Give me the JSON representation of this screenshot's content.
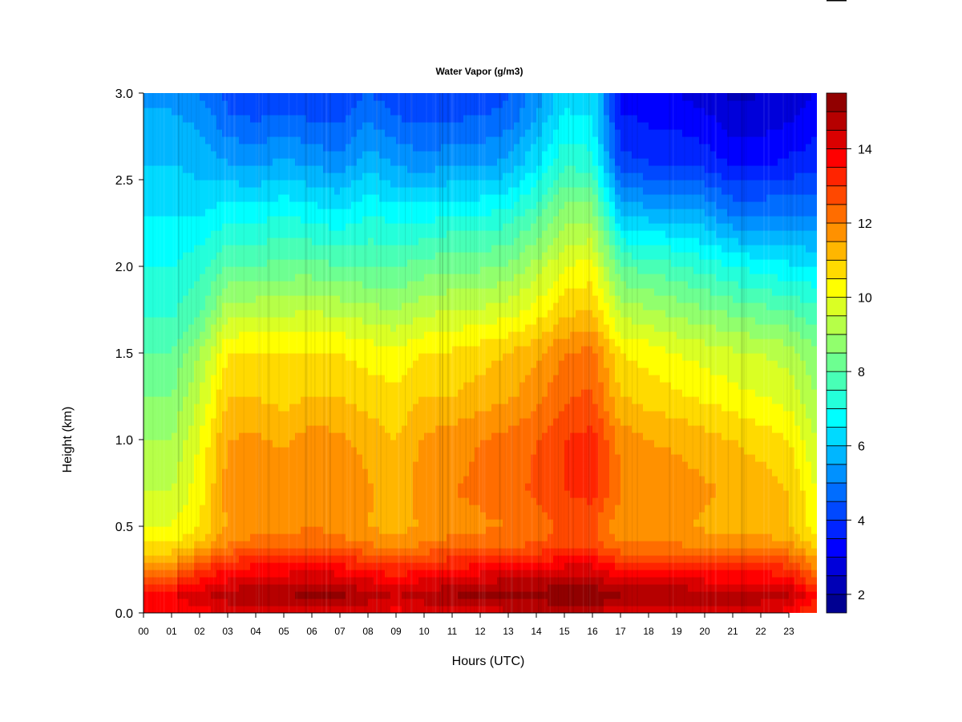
{
  "chart_data": {
    "type": "heatmap",
    "title": "Water Vapor (g/m3)",
    "xlabel": "Hours (UTC)",
    "ylabel": "Height (km)",
    "xlim": [
      0,
      24
    ],
    "ylim": [
      0,
      3.0
    ],
    "x_ticks": [
      "00",
      "01",
      "02",
      "03",
      "04",
      "05",
      "06",
      "07",
      "08",
      "09",
      "10",
      "11",
      "12",
      "13",
      "14",
      "15",
      "16",
      "17",
      "18",
      "19",
      "20",
      "21",
      "22",
      "23"
    ],
    "y_ticks": [
      "0.0",
      "0.5",
      "1.0",
      "1.5",
      "2.0",
      "2.5",
      "3.0"
    ],
    "colorbar": {
      "range": [
        1.5,
        15.5
      ],
      "levels": 28,
      "ticks": [
        "2",
        "4",
        "6",
        "8",
        "10",
        "12",
        "14"
      ],
      "colors": [
        "#00007f",
        "#0000bf",
        "#0000ff",
        "#003fff",
        "#007fff",
        "#00bfff",
        "#00ffff",
        "#3fffbf",
        "#7fff7f",
        "#bfff3f",
        "#ffff00",
        "#ffbf00",
        "#ff7f00",
        "#ff3f00",
        "#ff0000",
        "#bf0000",
        "#7f0000"
      ]
    },
    "height_km": [
      0.0,
      0.1,
      0.25,
      0.4,
      0.5,
      0.7,
      1.0,
      1.25,
      1.5,
      1.7,
      2.0,
      2.3,
      2.6,
      2.9,
      3.0
    ],
    "hours": [
      0,
      1,
      2,
      3,
      4,
      5,
      6,
      7,
      8,
      9,
      10,
      11,
      12,
      13,
      14,
      15,
      16,
      17,
      18,
      19,
      20,
      21,
      22,
      23,
      24
    ],
    "values": [
      [
        13.5,
        14.0,
        12.0,
        10.5,
        10.0,
        9.5,
        9.0,
        8.5,
        8.0,
        7.5,
        7.0,
        6.5,
        6.0,
        5.5,
        5.3
      ],
      [
        13.5,
        14.0,
        12.0,
        10.5,
        10.0,
        9.5,
        9.0,
        8.5,
        8.0,
        7.5,
        7.0,
        6.5,
        6.0,
        5.5,
        5.3
      ],
      [
        13.8,
        14.3,
        13.0,
        11.0,
        10.5,
        10.3,
        10.0,
        9.5,
        9.0,
        8.0,
        7.3,
        6.5,
        5.8,
        5.3,
        5.0
      ],
      [
        14.0,
        14.8,
        13.5,
        12.0,
        11.5,
        11.8,
        11.5,
        11.0,
        10.5,
        9.5,
        8.0,
        6.8,
        5.5,
        4.5,
        4.3
      ],
      [
        14.2,
        15.0,
        13.8,
        12.2,
        11.8,
        12.0,
        11.6,
        11.0,
        10.5,
        9.6,
        8.0,
        6.8,
        5.4,
        4.3,
        4.0
      ],
      [
        14.2,
        15.0,
        13.8,
        12.2,
        11.8,
        11.8,
        11.4,
        10.8,
        10.5,
        9.6,
        8.2,
        7.0,
        5.6,
        4.5,
        4.2
      ],
      [
        14.3,
        15.1,
        14.0,
        12.3,
        12.0,
        12.0,
        11.8,
        11.0,
        10.6,
        9.7,
        8.2,
        6.8,
        5.4,
        4.3,
        4.0
      ],
      [
        14.2,
        15.1,
        13.8,
        12.2,
        11.8,
        12.0,
        11.6,
        11.0,
        10.5,
        9.6,
        8.0,
        6.6,
        5.2,
        4.2,
        4.0
      ],
      [
        14.0,
        14.8,
        13.5,
        12.0,
        11.5,
        11.6,
        11.3,
        10.8,
        10.3,
        9.4,
        8.0,
        7.0,
        5.8,
        4.8,
        4.5
      ],
      [
        13.8,
        14.5,
        13.2,
        11.8,
        11.2,
        11.2,
        11.0,
        10.6,
        10.2,
        9.2,
        8.0,
        6.8,
        5.4,
        4.4,
        4.2
      ],
      [
        14.0,
        14.8,
        13.5,
        12.0,
        11.6,
        11.8,
        11.6,
        11.0,
        10.5,
        9.6,
        8.2,
        6.8,
        5.2,
        4.2,
        4.0
      ],
      [
        14.1,
        15.0,
        13.6,
        12.2,
        11.8,
        12.0,
        11.8,
        11.0,
        10.6,
        9.7,
        8.4,
        7.0,
        5.4,
        4.3,
        4.1
      ],
      [
        14.2,
        15.2,
        13.8,
        12.3,
        11.9,
        12.1,
        12.0,
        11.2,
        10.8,
        9.8,
        8.4,
        7.0,
        5.4,
        4.4,
        4.2
      ],
      [
        14.3,
        15.4,
        14.0,
        12.4,
        12.0,
        12.3,
        12.2,
        11.4,
        11.0,
        10.0,
        8.6,
        7.2,
        5.6,
        4.6,
        4.4
      ],
      [
        14.3,
        15.3,
        14.0,
        12.5,
        12.2,
        12.6,
        12.5,
        11.8,
        11.4,
        10.4,
        9.2,
        7.8,
        6.4,
        5.4,
        5.2
      ],
      [
        14.5,
        15.5,
        14.2,
        12.8,
        12.6,
        13.0,
        13.0,
        12.4,
        12.0,
        11.0,
        10.0,
        8.8,
        7.4,
        6.5,
        6.4
      ],
      [
        14.6,
        15.5,
        14.2,
        12.8,
        12.6,
        13.2,
        13.2,
        12.6,
        12.2,
        11.2,
        10.2,
        8.8,
        7.2,
        6.4,
        6.5
      ],
      [
        14.0,
        15.0,
        13.5,
        12.0,
        11.6,
        12.0,
        11.8,
        11.0,
        10.5,
        9.5,
        8.0,
        6.0,
        4.2,
        3.5,
        3.3
      ],
      [
        14.0,
        15.0,
        13.6,
        12.0,
        11.6,
        11.8,
        11.5,
        10.8,
        10.3,
        9.3,
        7.8,
        5.8,
        4.0,
        3.3,
        3.1
      ],
      [
        14.1,
        15.0,
        13.6,
        12.0,
        11.6,
        11.8,
        11.4,
        10.6,
        10.0,
        9.0,
        7.6,
        5.8,
        4.0,
        3.2,
        3.0
      ],
      [
        14.0,
        14.8,
        13.4,
        11.8,
        11.4,
        11.6,
        11.2,
        10.4,
        9.8,
        8.8,
        7.3,
        5.6,
        3.8,
        3.0,
        2.8
      ],
      [
        14.0,
        14.8,
        13.4,
        11.8,
        11.2,
        11.4,
        11.0,
        10.2,
        9.6,
        8.6,
        7.0,
        5.0,
        3.4,
        2.6,
        2.4
      ],
      [
        14.0,
        14.8,
        13.4,
        11.8,
        11.2,
        11.3,
        10.8,
        10.0,
        9.5,
        8.4,
        6.8,
        5.0,
        3.4,
        2.6,
        2.5
      ],
      [
        13.8,
        14.6,
        13.2,
        11.6,
        11.0,
        11.0,
        10.5,
        9.8,
        9.3,
        8.2,
        6.6,
        5.0,
        3.6,
        2.8,
        2.7
      ],
      [
        12.8,
        13.5,
        12.0,
        10.8,
        10.2,
        10.0,
        9.5,
        9.0,
        8.6,
        7.8,
        6.5,
        5.0,
        3.8,
        3.2,
        3.0
      ]
    ]
  }
}
